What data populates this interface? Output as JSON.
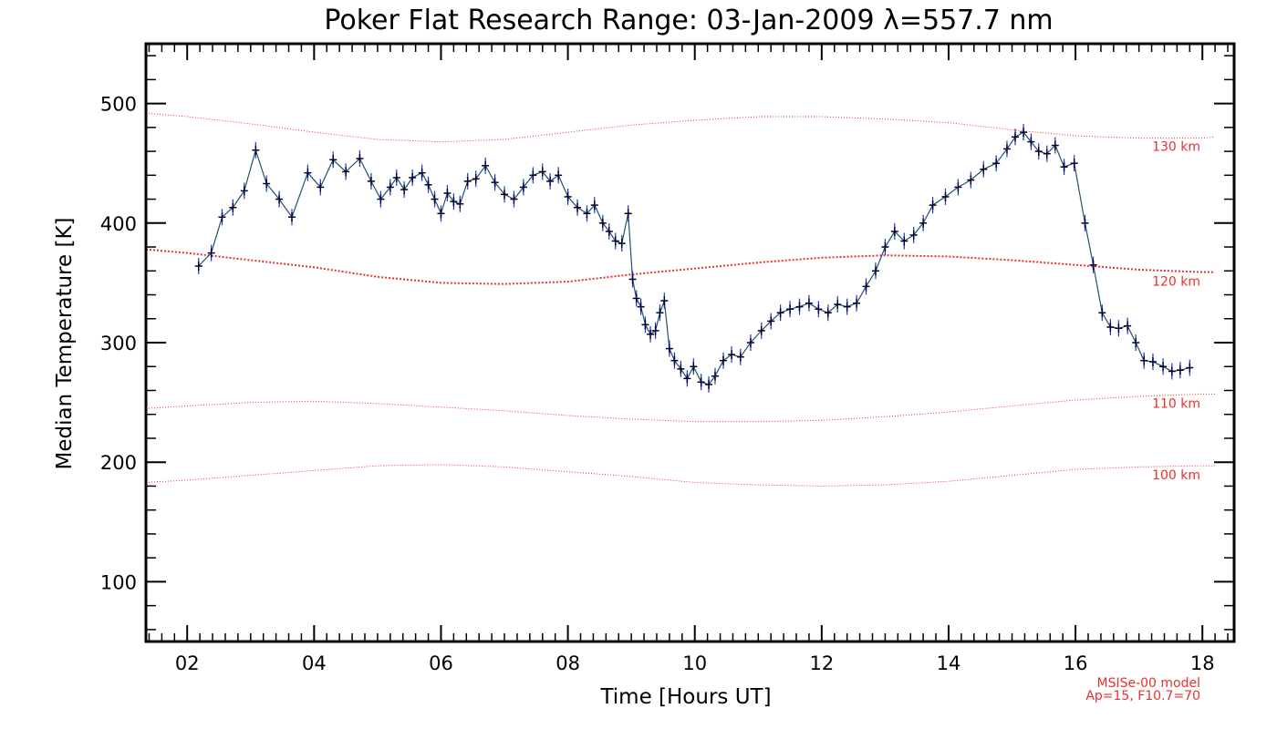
{
  "chart_data": {
    "type": "line",
    "title": "Poker Flat Research Range: 03-Jan-2009 λ=557.7 nm",
    "xlabel": "Time [Hours UT]",
    "ylabel": "Median Temperature [K]",
    "xlim": [
      1.35,
      18.5
    ],
    "ylim": [
      50,
      550
    ],
    "x_ticks": [
      2,
      4,
      6,
      8,
      10,
      12,
      14,
      16,
      18
    ],
    "x_tick_labels": [
      "02",
      "04",
      "06",
      "08",
      "10",
      "12",
      "14",
      "16",
      "18"
    ],
    "y_ticks": [
      100,
      200,
      300,
      400,
      500
    ],
    "y_tick_labels": [
      "100",
      "200",
      "300",
      "400",
      "500"
    ],
    "colors": {
      "data": "#000033",
      "error": "#1f35c8",
      "model": "#e8312f"
    },
    "series": [
      {
        "name": "Median Temperature",
        "x": [
          2.18,
          2.38,
          2.55,
          2.72,
          2.9,
          3.08,
          3.25,
          3.45,
          3.65,
          3.9,
          4.1,
          4.3,
          4.5,
          4.72,
          4.9,
          5.05,
          5.2,
          5.3,
          5.42,
          5.55,
          5.7,
          5.8,
          5.9,
          6.0,
          6.1,
          6.2,
          6.3,
          6.42,
          6.55,
          6.7,
          6.85,
          7.0,
          7.15,
          7.3,
          7.45,
          7.6,
          7.72,
          7.85,
          8.0,
          8.15,
          8.3,
          8.42,
          8.55,
          8.65,
          8.75,
          8.85,
          8.95,
          9.02,
          9.08,
          9.15,
          9.22,
          9.3,
          9.38,
          9.45,
          9.52,
          9.6,
          9.68,
          9.78,
          9.88,
          9.98,
          10.1,
          10.22,
          10.32,
          10.45,
          10.58,
          10.72,
          10.88,
          11.05,
          11.2,
          11.35,
          11.5,
          11.65,
          11.8,
          11.95,
          12.1,
          12.25,
          12.4,
          12.55,
          12.7,
          12.85,
          13.0,
          13.15,
          13.3,
          13.45,
          13.6,
          13.75,
          13.95,
          14.15,
          14.35,
          14.55,
          14.75,
          14.92,
          15.05,
          15.18,
          15.3,
          15.42,
          15.55,
          15.68,
          15.82,
          15.98,
          16.15,
          16.28,
          16.42,
          16.55,
          16.68,
          16.82,
          16.95,
          17.08,
          17.22,
          17.38,
          17.52,
          17.65,
          17.8
        ],
        "values": [
          364,
          375,
          405,
          413,
          427,
          461,
          433,
          420,
          405,
          442,
          430,
          453,
          443,
          454,
          435,
          420,
          430,
          438,
          428,
          438,
          442,
          432,
          420,
          408,
          425,
          418,
          416,
          435,
          437,
          448,
          434,
          424,
          420,
          430,
          440,
          443,
          435,
          440,
          422,
          413,
          408,
          415,
          400,
          393,
          385,
          383,
          408,
          353,
          337,
          330,
          315,
          307,
          310,
          325,
          335,
          295,
          285,
          278,
          270,
          280,
          267,
          265,
          272,
          285,
          290,
          288,
          300,
          310,
          318,
          325,
          328,
          330,
          333,
          328,
          325,
          332,
          330,
          333,
          347,
          360,
          380,
          393,
          385,
          390,
          400,
          415,
          422,
          430,
          436,
          445,
          450,
          462,
          472,
          476,
          468,
          460,
          458,
          465,
          447,
          450,
          400,
          365,
          325,
          313,
          312,
          314,
          300,
          285,
          284,
          280,
          276,
          277,
          279
        ]
      }
    ],
    "model_curves": [
      {
        "label": "130 km",
        "x": [
          1.35,
          2,
          3,
          4,
          5,
          6,
          7,
          8,
          9,
          10,
          11,
          12,
          13,
          14,
          15,
          16,
          17,
          18,
          18.2
        ],
        "values": [
          492,
          489,
          483,
          476,
          470,
          468,
          470,
          476,
          482,
          486,
          489,
          489,
          487,
          484,
          478,
          473,
          471,
          471,
          472
        ]
      },
      {
        "label": "120 km",
        "x": [
          1.35,
          2,
          3,
          4,
          5,
          6,
          7,
          8,
          9,
          10,
          11,
          12,
          13,
          14,
          15,
          16,
          17,
          18,
          18.2
        ],
        "values": [
          378,
          375,
          369,
          363,
          355,
          350,
          349,
          351,
          357,
          362,
          367,
          371,
          373,
          372,
          369,
          365,
          361,
          359,
          359
        ]
      },
      {
        "label": "110 km",
        "x": [
          1.35,
          2,
          3,
          4,
          5,
          6,
          7,
          8,
          9,
          10,
          11,
          12,
          13,
          14,
          15,
          16,
          17,
          18,
          18.2
        ],
        "values": [
          245,
          247,
          250,
          251,
          249,
          246,
          243,
          239,
          236,
          234,
          234,
          235,
          238,
          242,
          247,
          252,
          255,
          257,
          257
        ]
      },
      {
        "label": "100 km",
        "x": [
          1.35,
          2,
          3,
          4,
          5,
          6,
          7,
          8,
          9,
          10,
          11,
          12,
          13,
          14,
          15,
          16,
          17,
          18,
          18.2
        ],
        "values": [
          183,
          185,
          189,
          193,
          197,
          198,
          196,
          192,
          188,
          183,
          181,
          180,
          181,
          184,
          189,
          194,
          196,
          197,
          197
        ]
      }
    ],
    "annotation": [
      "MSISe-00 model",
      "Ap=15, F10.7=70"
    ]
  }
}
